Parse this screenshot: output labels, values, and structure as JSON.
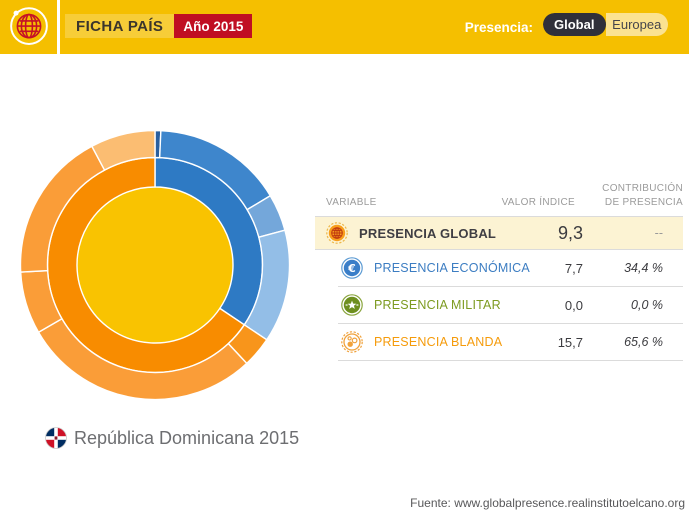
{
  "header": {
    "title": "FICHA PAÍS",
    "year_badge": "Año 2015",
    "presence_label": "Presencia:",
    "toggle": {
      "selected": "Global",
      "options": [
        {
          "label": "Global"
        },
        {
          "label": "Europea"
        }
      ]
    }
  },
  "colors": {
    "header_yellow": "#F5BF00",
    "badge_red": "#C00E22",
    "toggle_dark": "#30303A",
    "toggle_light": "#FBE290",
    "row_highlight": "#FCF3D3",
    "economic_blue": "#3C7DC2",
    "military_green": "#7D9B21",
    "soft_orange": "#F59B0B",
    "text_gray": "#9B9B9B",
    "center_yellow": "#F9C301",
    "dim_orange": "#F88C00"
  },
  "table": {
    "headers": {
      "variable": "VARIABLE",
      "value": "VALOR ÍNDICE",
      "contribution_line1": "CONTRIBUCIÓN",
      "contribution_line2": "DE PRESENCIA"
    },
    "rows": [
      {
        "id": "global",
        "label": "PRESENCIA GLOBAL",
        "value": "9,3",
        "contribution": "--",
        "icon": "globe-icon"
      },
      {
        "id": "economica",
        "label": "PRESENCIA ECONÓMICA",
        "value": "7,7",
        "contribution": "34,4 %",
        "icon": "euro-icon"
      },
      {
        "id": "militar",
        "label": "PRESENCIA MILITAR",
        "value": "0,0",
        "contribution": "0,0 %",
        "icon": "star-icon"
      },
      {
        "id": "blanda",
        "label": "PRESENCIA BLANDA",
        "value": "15,7",
        "contribution": "65,6 %",
        "icon": "bubbles-icon"
      }
    ]
  },
  "country": {
    "name": "República Dominicana 2015"
  },
  "footer": {
    "source": "Fuente: www.globalpresence.realinstitutoelcano.org"
  },
  "chart_data": {
    "type": "sunburst",
    "title": "Composición de la presencia global - República Dominicana 2015",
    "legend_position": "none",
    "center": {
      "radius": 78,
      "color": "#F9C301"
    },
    "rings": [
      {
        "name": "dimensiones",
        "inner_radius": 78,
        "outer_radius": 107.5,
        "segments": [
          {
            "label": "Presencia económica",
            "value_index": 7.7,
            "contribution_pct": 34.4,
            "start_deg": 0,
            "end_deg": 123.8,
            "color": "#2E7AC4"
          },
          {
            "label": "Presencia militar",
            "value_index": 0.0,
            "contribution_pct": 0.0,
            "start_deg": 123.8,
            "end_deg": 123.8,
            "color": "#7D9B21"
          },
          {
            "label": "Presencia blanda",
            "value_index": 15.7,
            "contribution_pct": 65.6,
            "start_deg": 123.8,
            "end_deg": 360,
            "color": "#F88C00"
          }
        ]
      },
      {
        "name": "indicadores",
        "inner_radius": 107.5,
        "outer_radius": 134.5,
        "segments": [
          {
            "label": "económica-1",
            "start_deg": 0,
            "end_deg": 2.5,
            "color": "#2A5F9F"
          },
          {
            "label": "económica-2",
            "start_deg": 2.5,
            "end_deg": 59,
            "color": "#3E86CC"
          },
          {
            "label": "económica-3",
            "start_deg": 59,
            "end_deg": 75,
            "color": "#74A7DA"
          },
          {
            "label": "económica-4",
            "start_deg": 75,
            "end_deg": 123.8,
            "color": "#93BEE7"
          },
          {
            "label": "blanda-1",
            "start_deg": 123.8,
            "end_deg": 137,
            "color": "#F8951B"
          },
          {
            "label": "blanda-2",
            "start_deg": 137,
            "end_deg": 240,
            "color": "#FA9D38"
          },
          {
            "label": "blanda-3",
            "start_deg": 240,
            "end_deg": 267,
            "color": "#FA9D38"
          },
          {
            "label": "blanda-4",
            "start_deg": 267,
            "end_deg": 332,
            "color": "#FA9D38"
          },
          {
            "label": "blanda-5",
            "start_deg": 332,
            "end_deg": 360,
            "color": "#FBBD72"
          }
        ]
      }
    ]
  }
}
